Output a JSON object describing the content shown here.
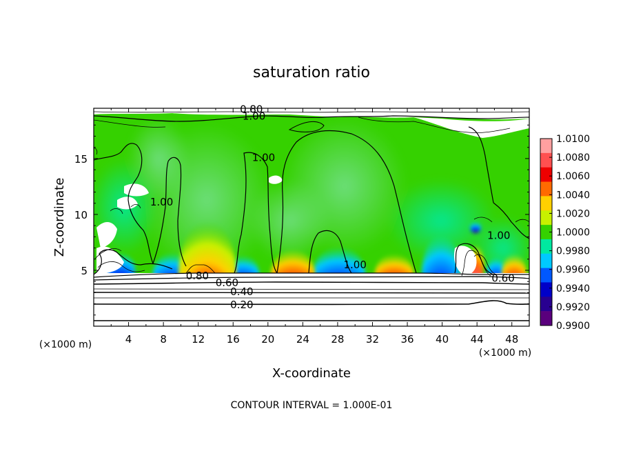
{
  "chart_data": {
    "type": "heatmap",
    "title": "saturation ratio",
    "xlabel": "X-coordinate",
    "ylabel": "Z-coordinate",
    "x_unit": "(×1000 m)",
    "xlim": [
      0,
      50
    ],
    "ylim": [
      0,
      19.5
    ],
    "x_ticks": [
      4,
      8,
      12,
      16,
      20,
      24,
      28,
      32,
      36,
      40,
      44,
      48
    ],
    "y_ticks": [
      5,
      10,
      15
    ],
    "contour_interval_label": "CONTOUR INTERVAL = 1.000E-01",
    "colorbar": {
      "labels": [
        "1.0100",
        "1.0080",
        "1.0060",
        "1.0040",
        "1.0020",
        "1.0000",
        "0.9980",
        "0.9960",
        "0.9940",
        "0.9920",
        "0.9900"
      ],
      "colors": [
        "#ffa0a0",
        "#ff5050",
        "#ee0000",
        "#ff6a00",
        "#ffd000",
        "#c8f000",
        "#35d100",
        "#00e9a0",
        "#00c9ff",
        "#0058ff",
        "#0000c8",
        "#280090",
        "#5a007d"
      ]
    },
    "contour_labels": [
      {
        "text": "0.80",
        "x": 18.1,
        "y": 19.4
      },
      {
        "text": "1.00",
        "x": 18.4,
        "y": 18.8
      },
      {
        "text": "1.00",
        "x": 19.5,
        "y": 15.1
      },
      {
        "text": "1.00",
        "x": 7.8,
        "y": 11.1
      },
      {
        "text": "1.00",
        "x": 30.0,
        "y": 5.5
      },
      {
        "text": "1.00",
        "x": 46.5,
        "y": 8.1
      },
      {
        "text": "0.80",
        "x": 11.9,
        "y": 4.5
      },
      {
        "text": "0.60",
        "x": 15.3,
        "y": 3.9
      },
      {
        "text": "0.60",
        "x": 47.0,
        "y": 4.3
      },
      {
        "text": "0.40",
        "x": 17.0,
        "y": 3.1
      },
      {
        "text": "0.20",
        "x": 17.0,
        "y": 1.9
      }
    ]
  }
}
